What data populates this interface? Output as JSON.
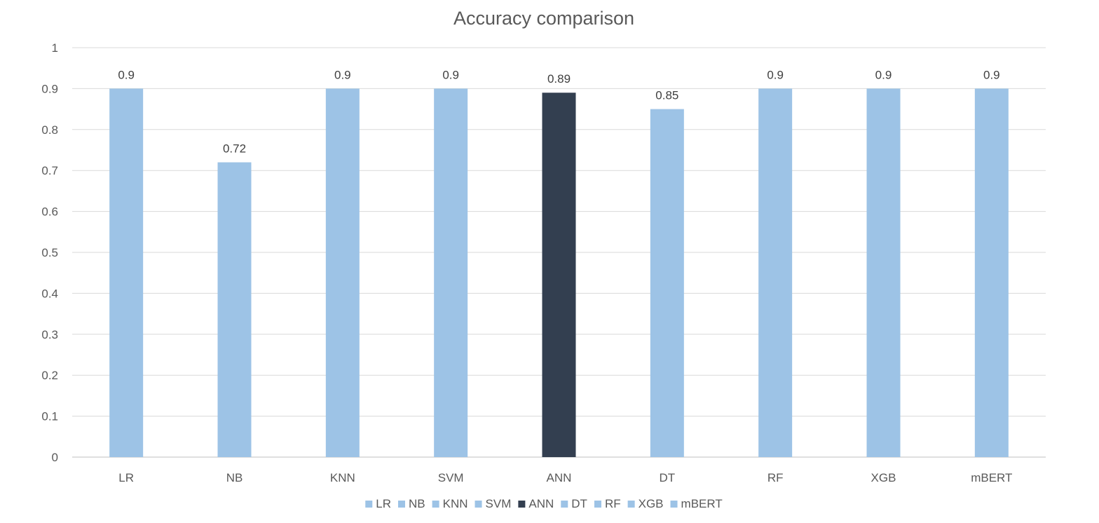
{
  "chart_data": {
    "type": "bar",
    "title": "Accuracy comparison",
    "xlabel": "",
    "ylabel": "",
    "categories": [
      "LR",
      "NB",
      "KNN",
      "SVM",
      "ANN",
      "DT",
      "RF",
      "XGB",
      "mBERT"
    ],
    "values": [
      0.9,
      0.72,
      0.9,
      0.9,
      0.89,
      0.85,
      0.9,
      0.9,
      0.9
    ],
    "data_labels": [
      "0.9",
      "0.72",
      "0.9",
      "0.9",
      "0.89",
      "0.85",
      "0.9",
      "0.9",
      "0.9"
    ],
    "ylim": [
      0,
      1
    ],
    "yticks": [
      "0",
      "0.1",
      "0.2",
      "0.3",
      "0.4",
      "0.5",
      "0.6",
      "0.7",
      "0.8",
      "0.9",
      "1"
    ],
    "grid": true,
    "legend_position": "bottom",
    "colors": [
      "#9DC3E6",
      "#9DC3E6",
      "#9DC3E6",
      "#9DC3E6",
      "#333F50",
      "#9DC3E6",
      "#9DC3E6",
      "#9DC3E6",
      "#9DC3E6"
    ]
  }
}
